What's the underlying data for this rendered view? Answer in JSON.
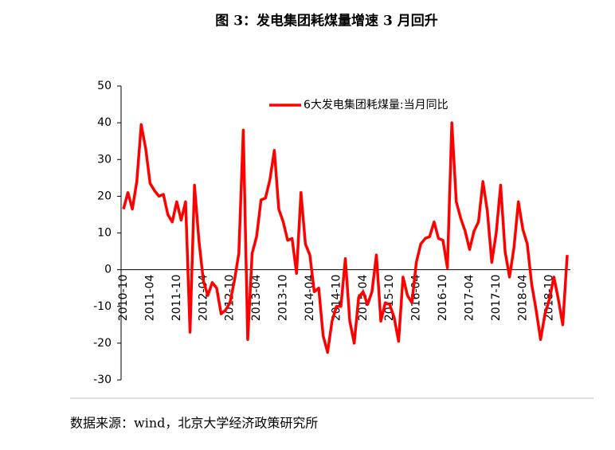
{
  "chart_data": {
    "type": "line",
    "title": "图 3：发电集团耗煤量增速 3 月回升",
    "source": "数据来源：wind，北京大学经济政策研究所",
    "legend": "top",
    "categories": [
      "2010-10",
      null,
      null,
      null,
      null,
      null,
      "2011-04",
      null,
      null,
      null,
      null,
      null,
      "2011-10",
      null,
      null,
      null,
      null,
      null,
      "2012-04",
      null,
      null,
      null,
      null,
      null,
      "2012-10",
      null,
      null,
      null,
      null,
      null,
      "2013-04",
      null,
      null,
      null,
      null,
      null,
      "2013-10",
      null,
      null,
      null,
      null,
      null,
      "2014-04",
      null,
      null,
      null,
      null,
      null,
      "2014-10",
      null,
      null,
      null,
      null,
      null,
      "2015-04",
      null,
      null,
      null,
      null,
      null,
      "2015-10",
      null,
      null,
      null,
      null,
      null,
      "2016-04",
      null,
      null,
      null,
      null,
      null,
      "2016-10",
      null,
      null,
      null,
      null,
      null,
      "2017-04",
      null,
      null,
      null,
      null,
      null,
      "2017-10",
      null,
      null,
      null,
      null,
      null,
      "2018-04",
      null,
      null,
      null,
      null,
      null,
      "2018-10",
      null,
      null,
      null,
      null
    ],
    "series": [
      {
        "name": "6大发电集团耗煤量:当月同比",
        "color": "#ff0000",
        "values": [
          16.5,
          21,
          16.5,
          24,
          39.5,
          33,
          23.5,
          21.5,
          20,
          20.5,
          15,
          13,
          18.5,
          13.5,
          18.5,
          -17,
          23,
          8,
          -3,
          -7,
          -3.5,
          -5,
          -12,
          -11,
          -9,
          -3,
          4.5,
          38,
          -19,
          4.5,
          9,
          19,
          19.5,
          24.5,
          32.5,
          16.5,
          13,
          8,
          8.5,
          -1,
          21,
          7,
          4,
          -6,
          -5,
          -18,
          -22.5,
          -14,
          -10,
          -10,
          3,
          -14,
          -20,
          -7.5,
          -6,
          -9.5,
          -6,
          4,
          -14,
          -9,
          -9.5,
          -13,
          -19.5,
          -2,
          -7,
          -9,
          2,
          7,
          8.5,
          9,
          13,
          8.5,
          8,
          0.5,
          40,
          18.5,
          14,
          10.5,
          5.5,
          10.5,
          13,
          24,
          16,
          2,
          10,
          23,
          5,
          -2,
          6,
          18.5,
          11,
          7,
          -4,
          -11,
          -19,
          -12,
          -8,
          -2,
          -8,
          -15,
          4
        ]
      }
    ],
    "ylim": [
      -30,
      50
    ],
    "yticks": [
      -30,
      -20,
      -10,
      0,
      10,
      20,
      30,
      40,
      50
    ]
  }
}
